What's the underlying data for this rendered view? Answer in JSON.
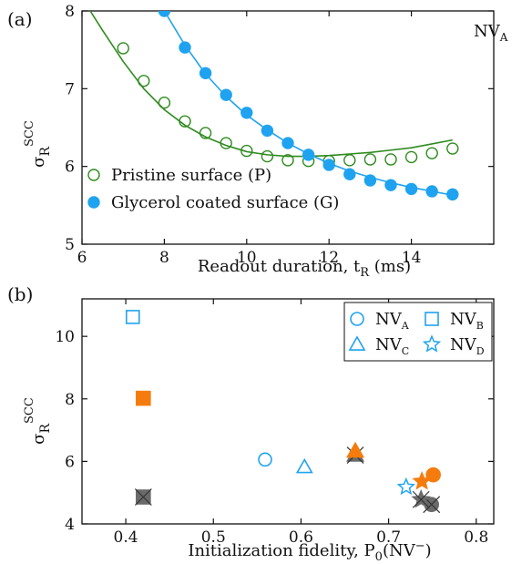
{
  "colors": {
    "green": "#2e8b1e",
    "blue": "#1fa3f0",
    "orange": "#f57c0c",
    "gray": "#6a6a6a",
    "axis": "#111111"
  },
  "chart_data": [
    {
      "type": "scatter",
      "panel_label": "(a)",
      "annotation": "NV",
      "annotation_sub": "A",
      "xlabel": "Readout duration, t",
      "xlabel_sub": "R",
      "xlabel_unit": " (ms)",
      "ylabel": "σ",
      "ylabel_sub": "R",
      "ylabel_sup": "SCC",
      "xlim": [
        6,
        16
      ],
      "ylim": [
        5,
        8
      ],
      "xticks": [
        6,
        8,
        10,
        12,
        14
      ],
      "yticks": [
        5,
        6,
        7,
        8
      ],
      "legend_position": "bottom-left",
      "series": [
        {
          "name": "Pristine surface (P)",
          "marker": "open-circle",
          "color": "#2e8b1e",
          "x": [
            7.0,
            7.5,
            8.0,
            8.5,
            9.0,
            9.5,
            10.0,
            10.5,
            11.0,
            11.5,
            12.0,
            12.5,
            13.0,
            13.5,
            14.0,
            14.5,
            15.0
          ],
          "y": [
            7.52,
            7.1,
            6.82,
            6.58,
            6.43,
            6.3,
            6.2,
            6.13,
            6.08,
            6.07,
            6.07,
            6.08,
            6.09,
            6.09,
            6.12,
            6.17,
            6.23
          ],
          "fit": {
            "x": [
              6.2,
              6.5,
              7.0,
              7.5,
              8.0,
              8.5,
              9.0,
              9.5,
              10.0,
              10.5,
              11.0,
              11.5,
              12.0,
              12.5,
              13.0,
              13.5,
              14.0,
              14.5,
              15.0
            ],
            "y": [
              8.0,
              7.75,
              7.35,
              7.0,
              6.73,
              6.53,
              6.38,
              6.27,
              6.19,
              6.15,
              6.13,
              6.13,
              6.14,
              6.16,
              6.18,
              6.21,
              6.24,
              6.29,
              6.34
            ]
          }
        },
        {
          "name": "Glycerol coated surface (G)",
          "marker": "filled-circle",
          "color": "#1fa3f0",
          "x": [
            8.0,
            8.5,
            9.0,
            9.5,
            10.0,
            10.5,
            11.0,
            11.5,
            12.0,
            12.5,
            13.0,
            13.5,
            14.0,
            14.5,
            15.0
          ],
          "y": [
            8.0,
            7.53,
            7.2,
            6.92,
            6.69,
            6.46,
            6.3,
            6.15,
            6.02,
            5.9,
            5.82,
            5.76,
            5.71,
            5.68,
            5.64
          ],
          "fit": {
            "x": [
              8.0,
              8.5,
              9.0,
              9.5,
              10.0,
              10.5,
              11.0,
              11.5,
              12.0,
              12.5,
              13.0,
              13.5,
              14.0,
              14.5,
              15.0
            ],
            "y": [
              8.0,
              7.56,
              7.19,
              6.9,
              6.66,
              6.47,
              6.3,
              6.16,
              6.04,
              5.94,
              5.86,
              5.79,
              5.73,
              5.68,
              5.63
            ]
          }
        }
      ]
    },
    {
      "type": "scatter",
      "panel_label": "(b)",
      "xlabel": "Initialization fidelity, P",
      "xlabel_sub": "0",
      "xlabel_unit": "(NV",
      "xlabel_sup": "−",
      "xlabel_end": ")",
      "ylabel": "σ",
      "ylabel_sub": "R",
      "ylabel_sup": "SCC",
      "xlim": [
        0.35,
        0.82
      ],
      "ylim": [
        4,
        11.2
      ],
      "xticks": [
        0.4,
        0.5,
        0.6,
        0.7,
        0.8
      ],
      "yticks": [
        4,
        6,
        8,
        10
      ],
      "legend_position": "top-right",
      "legend": [
        {
          "label": "NV",
          "sub": "A",
          "marker": "open-circle"
        },
        {
          "label": "NV",
          "sub": "B",
          "marker": "open-square"
        },
        {
          "label": "NV",
          "sub": "C",
          "marker": "open-triangle"
        },
        {
          "label": "NV",
          "sub": "D",
          "marker": "open-star"
        }
      ],
      "points": [
        {
          "nv": "A",
          "marker": "open-circle",
          "style": "blue",
          "x": 0.559,
          "y": 6.06
        },
        {
          "nv": "A",
          "marker": "filled-circle",
          "style": "orange",
          "x": 0.751,
          "y": 5.57
        },
        {
          "nv": "A",
          "marker": "crossed-circle",
          "style": "gray",
          "x": 0.749,
          "y": 4.62
        },
        {
          "nv": "B",
          "marker": "open-square",
          "style": "blue",
          "x": 0.408,
          "y": 10.62
        },
        {
          "nv": "B",
          "marker": "filled-square",
          "style": "orange",
          "x": 0.42,
          "y": 8.02
        },
        {
          "nv": "B",
          "marker": "crossed-square",
          "style": "gray",
          "x": 0.42,
          "y": 4.86
        },
        {
          "nv": "C",
          "marker": "open-triangle",
          "style": "blue",
          "x": 0.604,
          "y": 5.82
        },
        {
          "nv": "C",
          "marker": "filled-triangle",
          "style": "orange",
          "x": 0.662,
          "y": 6.33
        },
        {
          "nv": "C",
          "marker": "crossed-triangle",
          "style": "gray",
          "x": 0.662,
          "y": 6.2
        },
        {
          "nv": "D",
          "marker": "open-star",
          "style": "blue",
          "x": 0.72,
          "y": 5.18
        },
        {
          "nv": "D",
          "marker": "filled-star",
          "style": "orange",
          "x": 0.738,
          "y": 5.36
        },
        {
          "nv": "D",
          "marker": "crossed-star",
          "style": "gray",
          "x": 0.737,
          "y": 4.78
        }
      ]
    }
  ]
}
